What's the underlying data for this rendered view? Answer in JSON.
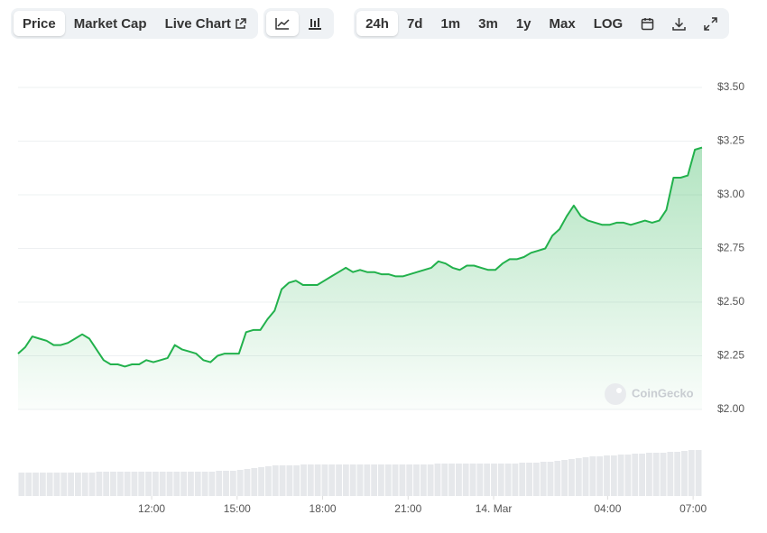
{
  "toolbar": {
    "view_tabs": [
      "Price",
      "Market Cap",
      "Live Chart"
    ],
    "range_tabs": [
      "24h",
      "7d",
      "1m",
      "3m",
      "1y",
      "Max",
      "LOG"
    ]
  },
  "chart_data": {
    "type": "area",
    "watermark": "CoinGecko",
    "color": "#22b14c",
    "values": [
      2.26,
      2.29,
      2.34,
      2.33,
      2.32,
      2.3,
      2.3,
      2.31,
      2.33,
      2.35,
      2.33,
      2.28,
      2.23,
      2.21,
      2.21,
      2.2,
      2.21,
      2.21,
      2.23,
      2.22,
      2.23,
      2.24,
      2.3,
      2.28,
      2.27,
      2.26,
      2.23,
      2.22,
      2.25,
      2.26,
      2.26,
      2.26,
      2.36,
      2.37,
      2.37,
      2.42,
      2.46,
      2.56,
      2.59,
      2.6,
      2.58,
      2.58,
      2.58,
      2.6,
      2.62,
      2.64,
      2.66,
      2.64,
      2.65,
      2.64,
      2.64,
      2.63,
      2.63,
      2.62,
      2.62,
      2.63,
      2.64,
      2.65,
      2.66,
      2.69,
      2.68,
      2.66,
      2.65,
      2.67,
      2.67,
      2.66,
      2.65,
      2.65,
      2.68,
      2.7,
      2.7,
      2.71,
      2.73,
      2.74,
      2.75,
      2.81,
      2.84,
      2.9,
      2.95,
      2.9,
      2.88,
      2.87,
      2.86,
      2.86,
      2.87,
      2.87,
      2.86,
      2.87,
      2.88,
      2.87,
      2.88,
      2.93,
      3.08,
      3.08,
      3.09,
      3.21,
      3.22
    ],
    "volume": {
      "color": "#e6e8eb",
      "ylim": [
        0,
        100
      ],
      "values": [
        26,
        26,
        26,
        26,
        26,
        26,
        26,
        26,
        26,
        26,
        26,
        27,
        27,
        27,
        27,
        27,
        27,
        27,
        27,
        27,
        27,
        27,
        27,
        27,
        27,
        27,
        27,
        27,
        28,
        28,
        28,
        29,
        30,
        31,
        32,
        33,
        34,
        34,
        34,
        34,
        35,
        35,
        35,
        35,
        35,
        35,
        35,
        35,
        35,
        35,
        35,
        35,
        35,
        35,
        35,
        35,
        35,
        35,
        35,
        36,
        36,
        36,
        36,
        36,
        36,
        36,
        36,
        36,
        36,
        36,
        36,
        37,
        37,
        37,
        38,
        38,
        39,
        40,
        41,
        42,
        43,
        44,
        44,
        45,
        45,
        46,
        46,
        47,
        47,
        48,
        48,
        48,
        49,
        49,
        50,
        51,
        51
      ]
    },
    "xlim": [
      0,
      96
    ],
    "xticks": [
      {
        "value": 18.75,
        "label": "12:00"
      },
      {
        "value": 30.75,
        "label": "15:00"
      },
      {
        "value": 42.75,
        "label": "18:00"
      },
      {
        "value": 54.75,
        "label": "21:00"
      },
      {
        "value": 66.75,
        "label": "14. Mar"
      },
      {
        "value": 82.75,
        "label": "04:00"
      },
      {
        "value": 94.75,
        "label": "07:00"
      }
    ],
    "ylim": [
      2.0,
      3.5
    ],
    "yticks": [
      {
        "value": 2.0,
        "label": "$2.00"
      },
      {
        "value": 2.25,
        "label": "$2.25"
      },
      {
        "value": 2.5,
        "label": "$2.50"
      },
      {
        "value": 2.75,
        "label": "$2.75"
      },
      {
        "value": 3.0,
        "label": "$3.00"
      },
      {
        "value": 3.25,
        "label": "$3.25"
      },
      {
        "value": 3.5,
        "label": "$3.50"
      }
    ],
    "grid": true
  }
}
